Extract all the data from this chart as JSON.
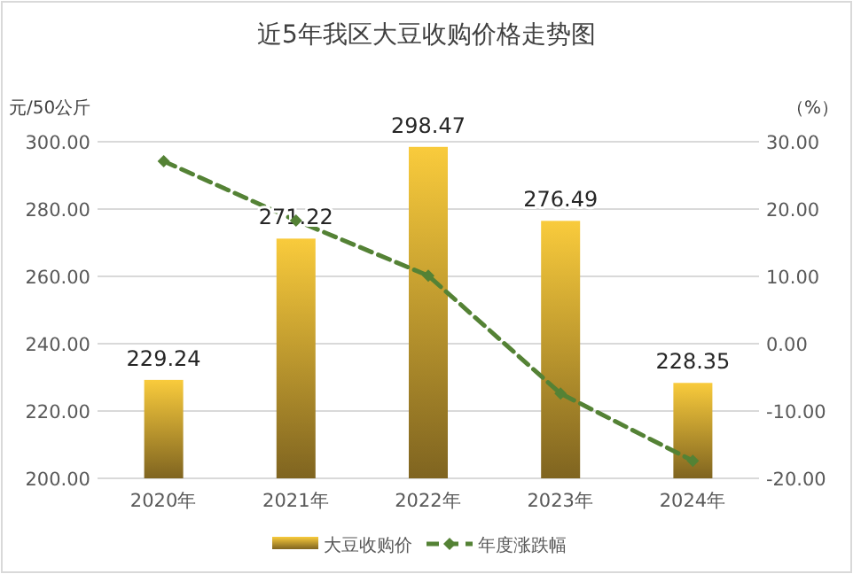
{
  "chart_data": {
    "type": "bar",
    "title": "近5年我区大豆收购价格走势图",
    "ylabel": "元/50公斤",
    "y2label": "（%）",
    "categories": [
      "2020年",
      "2021年",
      "2022年",
      "2023年",
      "2024年"
    ],
    "series": [
      {
        "name": "大豆收购价",
        "color": "#f9cb3c",
        "values": [
          229.24,
          271.22,
          298.47,
          276.49,
          228.35
        ],
        "value_labels": [
          "229.24",
          "271.22",
          "298.47",
          "276.49",
          "228.35"
        ]
      },
      {
        "name": "年度涨跌幅",
        "type": "line",
        "axis": "y2",
        "color": "#548235",
        "values": [
          27.1,
          18.3,
          10.1,
          -7.4,
          -17.4
        ],
        "line_style": "dashed",
        "marker": "diamond"
      }
    ],
    "ylim": [
      200,
      300
    ],
    "yticks": [
      {
        "value": 200,
        "label": "200.00"
      },
      {
        "value": 220,
        "label": "220.00"
      },
      {
        "value": 240,
        "label": "240.00"
      },
      {
        "value": 260,
        "label": "260.00"
      },
      {
        "value": 280,
        "label": "280.00"
      },
      {
        "value": 300,
        "label": "300.00"
      }
    ],
    "y2lim": [
      -20,
      30
    ],
    "y2ticks": [
      {
        "value": -20,
        "label": "-20.00"
      },
      {
        "value": -10,
        "label": "-10.00"
      },
      {
        "value": 0,
        "label": "0.00"
      },
      {
        "value": 10,
        "label": "10.00"
      },
      {
        "value": 20,
        "label": "20.00"
      },
      {
        "value": 30,
        "label": "30.00"
      }
    ],
    "grid": "y",
    "legend": "bottom"
  }
}
